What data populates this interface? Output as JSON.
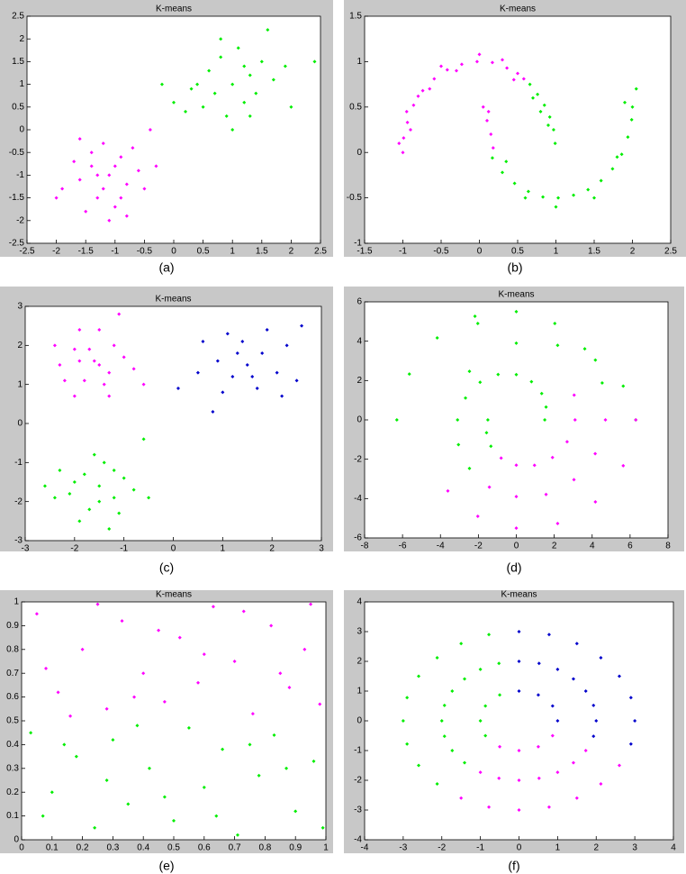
{
  "chart_data": [
    {
      "type": "scatter",
      "title": "K-means",
      "caption": "(a)",
      "xlim": [
        -2.5,
        2.5
      ],
      "ylim": [
        -2.5,
        2.5
      ],
      "xticks": [
        -2.5,
        -2,
        -1.5,
        -1,
        -0.5,
        0,
        0.5,
        1,
        1.5,
        2,
        2.5
      ],
      "yticks": [
        -2.5,
        -2,
        -1.5,
        -1,
        -0.5,
        0,
        0.5,
        1,
        1.5,
        2,
        2.5
      ],
      "series": [
        {
          "color": "#ff00ff",
          "x": [
            -1.1,
            -1.4,
            -0.8,
            -1.3,
            -0.9,
            -1.6,
            -0.6,
            -1.2,
            -1.0,
            -1.7,
            -0.5,
            -1.5,
            -0.7,
            -1.9,
            -1.2,
            -0.9,
            -1.4,
            -0.4,
            -2.0,
            -1.1,
            -0.3,
            -1.6,
            -0.8,
            -1.3,
            -1.0
          ],
          "values": [
            -1.0,
            -0.8,
            -1.2,
            -1.5,
            -0.6,
            -1.1,
            -0.9,
            -0.3,
            -1.7,
            -0.7,
            -1.3,
            -1.8,
            -0.4,
            -1.3,
            -1.3,
            -1.5,
            -0.5,
            0.0,
            -1.5,
            -2.0,
            -0.8,
            -0.2,
            -1.9,
            -1.0,
            -0.8
          ]
        },
        {
          "color": "#00ee00",
          "x": [
            1.0,
            0.7,
            1.3,
            0.5,
            1.5,
            0.8,
            1.2,
            0.3,
            1.7,
            0.9,
            1.4,
            0.6,
            1.1,
            0.2,
            1.9,
            0.8,
            1.6,
            0.0,
            1.3,
            2.0,
            0.4,
            1.0,
            -0.2,
            2.4,
            1.2
          ],
          "values": [
            1.0,
            0.8,
            1.2,
            0.5,
            1.5,
            1.6,
            0.6,
            0.9,
            1.1,
            0.3,
            0.8,
            1.3,
            1.8,
            0.4,
            1.4,
            2.0,
            2.2,
            0.6,
            0.3,
            0.5,
            1.0,
            0.0,
            1.0,
            1.5,
            1.4
          ]
        }
      ]
    },
    {
      "type": "scatter",
      "title": "K-means",
      "caption": "(b)",
      "xlim": [
        -1.5,
        2.5
      ],
      "ylim": [
        -1,
        1.5
      ],
      "xticks": [
        -1.5,
        -1,
        -0.5,
        0,
        0.5,
        1,
        1.5,
        2,
        2.5
      ],
      "yticks": [
        -1,
        -0.5,
        0,
        0.5,
        1,
        1.5
      ],
      "series": [
        {
          "color": "#ff00ff",
          "x": [
            -1.0,
            -0.99,
            -0.94,
            -0.86,
            -0.74,
            -0.59,
            -0.42,
            -0.23,
            -0.03,
            0.17,
            0.36,
            0.5,
            0.58,
            -1.05,
            -0.9,
            -0.8,
            -0.5,
            -0.3,
            0.0,
            0.3,
            0.45,
            -0.95,
            -0.65,
            0.05,
            0.1,
            0.15,
            0.12,
            0.18
          ],
          "values": [
            0.0,
            0.16,
            0.33,
            0.52,
            0.68,
            0.81,
            0.91,
            0.97,
            1.0,
            0.99,
            0.93,
            0.87,
            0.81,
            0.1,
            0.25,
            0.62,
            0.95,
            0.9,
            1.08,
            1.02,
            0.8,
            0.45,
            0.7,
            0.5,
            0.35,
            0.2,
            0.45,
            0.05
          ]
        },
        {
          "color": "#00ee00",
          "x": [
            0.66,
            0.76,
            0.85,
            0.92,
            0.97,
            0.99,
            0.7,
            0.9,
            0.8,
            0.17,
            0.3,
            0.46,
            0.64,
            0.83,
            1.03,
            1.23,
            1.42,
            1.59,
            1.74,
            1.86,
            1.94,
            1.99,
            2.0,
            2.05,
            1.9,
            1.0,
            0.6,
            1.5,
            1.8,
            0.35
          ],
          "values": [
            0.75,
            0.64,
            0.52,
            0.39,
            0.25,
            0.1,
            0.6,
            0.3,
            0.45,
            -0.06,
            -0.22,
            -0.34,
            -0.43,
            -0.49,
            -0.5,
            -0.47,
            -0.41,
            -0.31,
            -0.18,
            -0.02,
            0.17,
            0.36,
            0.5,
            0.7,
            0.55,
            -0.6,
            -0.5,
            -0.5,
            -0.05,
            -0.1
          ]
        }
      ]
    },
    {
      "type": "scatter",
      "title": "K-means",
      "caption": "(c)",
      "xlim": [
        -3,
        3
      ],
      "ylim": [
        -3,
        3
      ],
      "xticks": [
        -3,
        -2,
        -1,
        0,
        1,
        2,
        3
      ],
      "yticks": [
        -3,
        -2,
        -1,
        0,
        1,
        2,
        3
      ],
      "series": [
        {
          "color": "#ff00ff",
          "x": [
            -1.6,
            -2.0,
            -1.3,
            -1.8,
            -1.2,
            -2.3,
            -1.5,
            -1.0,
            -1.9,
            -1.4,
            -2.2,
            -0.8,
            -1.7,
            -1.1,
            -2.4,
            -0.6,
            -1.5,
            -2.0,
            -1.3,
            -1.9
          ],
          "values": [
            1.6,
            1.9,
            1.3,
            1.1,
            2.0,
            1.5,
            2.4,
            1.7,
            2.4,
            1.0,
            1.1,
            1.4,
            1.9,
            2.8,
            2.0,
            1.0,
            1.5,
            0.7,
            0.7,
            1.6
          ]
        },
        {
          "color": "#0000cc",
          "x": [
            1.5,
            1.2,
            1.8,
            0.9,
            2.1,
            1.4,
            1.7,
            1.0,
            2.3,
            0.5,
            1.3,
            2.5,
            1.9,
            0.8,
            2.6,
            0.1,
            1.6,
            1.1,
            2.2,
            0.6
          ],
          "values": [
            1.5,
            1.2,
            1.8,
            1.6,
            1.3,
            2.1,
            0.9,
            0.8,
            2.0,
            1.3,
            1.8,
            1.1,
            2.4,
            0.3,
            2.5,
            0.9,
            1.2,
            2.3,
            0.7,
            2.1
          ]
        },
        {
          "color": "#00ee00",
          "x": [
            -1.5,
            -1.8,
            -1.2,
            -2.1,
            -1.4,
            -1.0,
            -1.7,
            -2.3,
            -1.1,
            -1.9,
            -0.8,
            -2.4,
            -1.6,
            -1.3,
            -0.6,
            -0.5,
            -2.0,
            -1.5,
            -1.2,
            -2.6
          ],
          "values": [
            -1.6,
            -1.3,
            -1.9,
            -1.8,
            -1.0,
            -1.4,
            -2.2,
            -1.2,
            -2.3,
            -2.5,
            -1.7,
            -1.9,
            -0.8,
            -2.7,
            -0.4,
            -1.9,
            -1.5,
            -2.0,
            -1.2,
            -1.6
          ]
        }
      ]
    },
    {
      "type": "scatter",
      "title": "K-means",
      "caption": "(d)",
      "xlim": [
        -8,
        8
      ],
      "ylim": [
        -6,
        6
      ],
      "xticks": [
        -8,
        -6,
        -4,
        -2,
        0,
        2,
        4,
        6,
        8
      ],
      "yticks": [
        -6,
        -4,
        -2,
        0,
        2,
        4,
        6
      ],
      "series": [
        {
          "color": "#00ee00",
          "x": [
            1.5,
            1.57,
            1.34,
            0.8,
            0,
            -0.96,
            -1.91,
            -2.68,
            -3.1,
            -3.05,
            -2.47,
            4.53,
            3.61,
            2.03,
            0,
            -2.18,
            -4.17,
            -5.64,
            -6.3,
            -1.5,
            -1.57,
            -1.34,
            -2.47,
            -2.03,
            0,
            2.18,
            4.17,
            5.64,
            6.3
          ],
          "values": [
            0,
            0.65,
            1.34,
            1.94,
            2.3,
            2.31,
            1.91,
            1.11,
            0,
            -1.26,
            -2.47,
            1.88,
            3.61,
            4.9,
            5.5,
            5.27,
            4.17,
            2.33,
            0,
            0,
            -0.65,
            -1.34,
            2.47,
            4.9,
            3.9,
            3.79,
            3.04,
            1.72,
            0
          ]
        },
        {
          "color": "#ff00ff",
          "x": [
            -1.42,
            0,
            1.57,
            3.04,
            4.16,
            4.7,
            -0.8,
            0,
            0.96,
            1.91,
            2.68,
            3.1,
            3.05,
            -3.61,
            -2.03,
            0,
            2.18,
            4.17,
            5.64,
            6.3
          ],
          "values": [
            -3.42,
            -3.9,
            -3.79,
            -3.04,
            -1.72,
            0,
            -1.94,
            -2.3,
            -2.31,
            -1.91,
            -1.11,
            0,
            1.26,
            -3.61,
            -4.9,
            -5.5,
            -5.27,
            -4.17,
            -2.33,
            0
          ]
        }
      ]
    },
    {
      "type": "scatter",
      "title": "K-means",
      "caption": "(e)",
      "xlim": [
        0,
        1
      ],
      "ylim": [
        0,
        1
      ],
      "xticks": [
        0,
        0.1,
        0.2,
        0.3,
        0.4,
        0.5,
        0.6,
        0.7,
        0.8,
        0.9,
        1
      ],
      "yticks": [
        0,
        0.1,
        0.2,
        0.3,
        0.4,
        0.5,
        0.6,
        0.7,
        0.8,
        0.9,
        1
      ],
      "series": [
        {
          "color": "#ff00ff",
          "x": [
            0.05,
            0.12,
            0.2,
            0.28,
            0.33,
            0.4,
            0.47,
            0.52,
            0.58,
            0.63,
            0.7,
            0.76,
            0.82,
            0.88,
            0.93,
            0.98,
            0.08,
            0.16,
            0.25,
            0.37,
            0.45,
            0.6,
            0.73,
            0.85,
            0.95
          ],
          "values": [
            0.95,
            0.62,
            0.8,
            0.55,
            0.92,
            0.7,
            0.58,
            0.85,
            0.66,
            0.98,
            0.75,
            0.53,
            0.9,
            0.64,
            0.8,
            0.57,
            0.72,
            0.52,
            0.99,
            0.6,
            0.88,
            0.78,
            0.96,
            0.7,
            0.99
          ]
        },
        {
          "color": "#00ee00",
          "x": [
            0.03,
            0.1,
            0.18,
            0.24,
            0.3,
            0.35,
            0.42,
            0.5,
            0.55,
            0.6,
            0.66,
            0.71,
            0.78,
            0.83,
            0.9,
            0.96,
            0.07,
            0.14,
            0.28,
            0.38,
            0.47,
            0.64,
            0.75,
            0.87,
            0.99
          ],
          "values": [
            0.45,
            0.2,
            0.35,
            0.05,
            0.42,
            0.15,
            0.3,
            0.08,
            0.47,
            0.22,
            0.38,
            0.02,
            0.27,
            0.44,
            0.12,
            0.33,
            0.1,
            0.4,
            0.25,
            0.48,
            0.18,
            0.1,
            0.4,
            0.3,
            0.05
          ]
        }
      ]
    },
    {
      "type": "scatter",
      "title": "K-means",
      "caption": "(f)",
      "xlim": [
        -4,
        4
      ],
      "ylim": [
        -4,
        4
      ],
      "xticks": [
        -4,
        -3,
        -2,
        -1,
        0,
        1,
        2,
        3,
        4
      ],
      "yticks": [
        -4,
        -3,
        -2,
        -1,
        0,
        1,
        2,
        3,
        4
      ],
      "series": [
        {
          "color": "#0000cc",
          "x": [
            2.9,
            3,
            2.9,
            2.6,
            2.12,
            1.5,
            0.78,
            0,
            1.93,
            2,
            1.93,
            1.73,
            1.41,
            1,
            0.52,
            0,
            1,
            0.87,
            0.5,
            0
          ],
          "values": [
            -0.78,
            0,
            0.78,
            1.5,
            2.12,
            2.6,
            2.9,
            3,
            -0.52,
            0,
            0.52,
            1,
            1.41,
            1.73,
            1.93,
            2,
            0,
            0.5,
            0.87,
            1
          ]
        },
        {
          "color": "#00ee00",
          "x": [
            -0.78,
            -1.5,
            -2.12,
            -2.6,
            -2.9,
            -3,
            -2.9,
            -2.6,
            -2.12,
            -0.52,
            -1,
            -1.41,
            -1.73,
            -1.93,
            -2,
            -1.93,
            -1.73,
            -1.41,
            -0.5,
            -0.87,
            -1,
            -0.87
          ],
          "values": [
            2.9,
            2.6,
            2.12,
            1.5,
            0.78,
            0,
            -0.78,
            -1.5,
            -2.12,
            1.93,
            1.73,
            1.41,
            1,
            0.52,
            0,
            -0.52,
            -1,
            -1.41,
            0.87,
            0.5,
            0,
            -0.5
          ]
        },
        {
          "color": "#ff00ff",
          "x": [
            -1.5,
            -0.78,
            0,
            0.78,
            1.5,
            2.12,
            2.6,
            -1,
            -0.52,
            0,
            0.52,
            1,
            1.41,
            1.73,
            -0.5,
            0,
            0.5,
            0.87
          ],
          "values": [
            -2.6,
            -2.9,
            -3,
            -2.9,
            -2.6,
            -2.12,
            -1.5,
            -1.73,
            -1.93,
            -2,
            -1.93,
            -1.73,
            -1.41,
            -1,
            -0.87,
            -1,
            -0.87,
            -0.5
          ]
        }
      ]
    }
  ]
}
